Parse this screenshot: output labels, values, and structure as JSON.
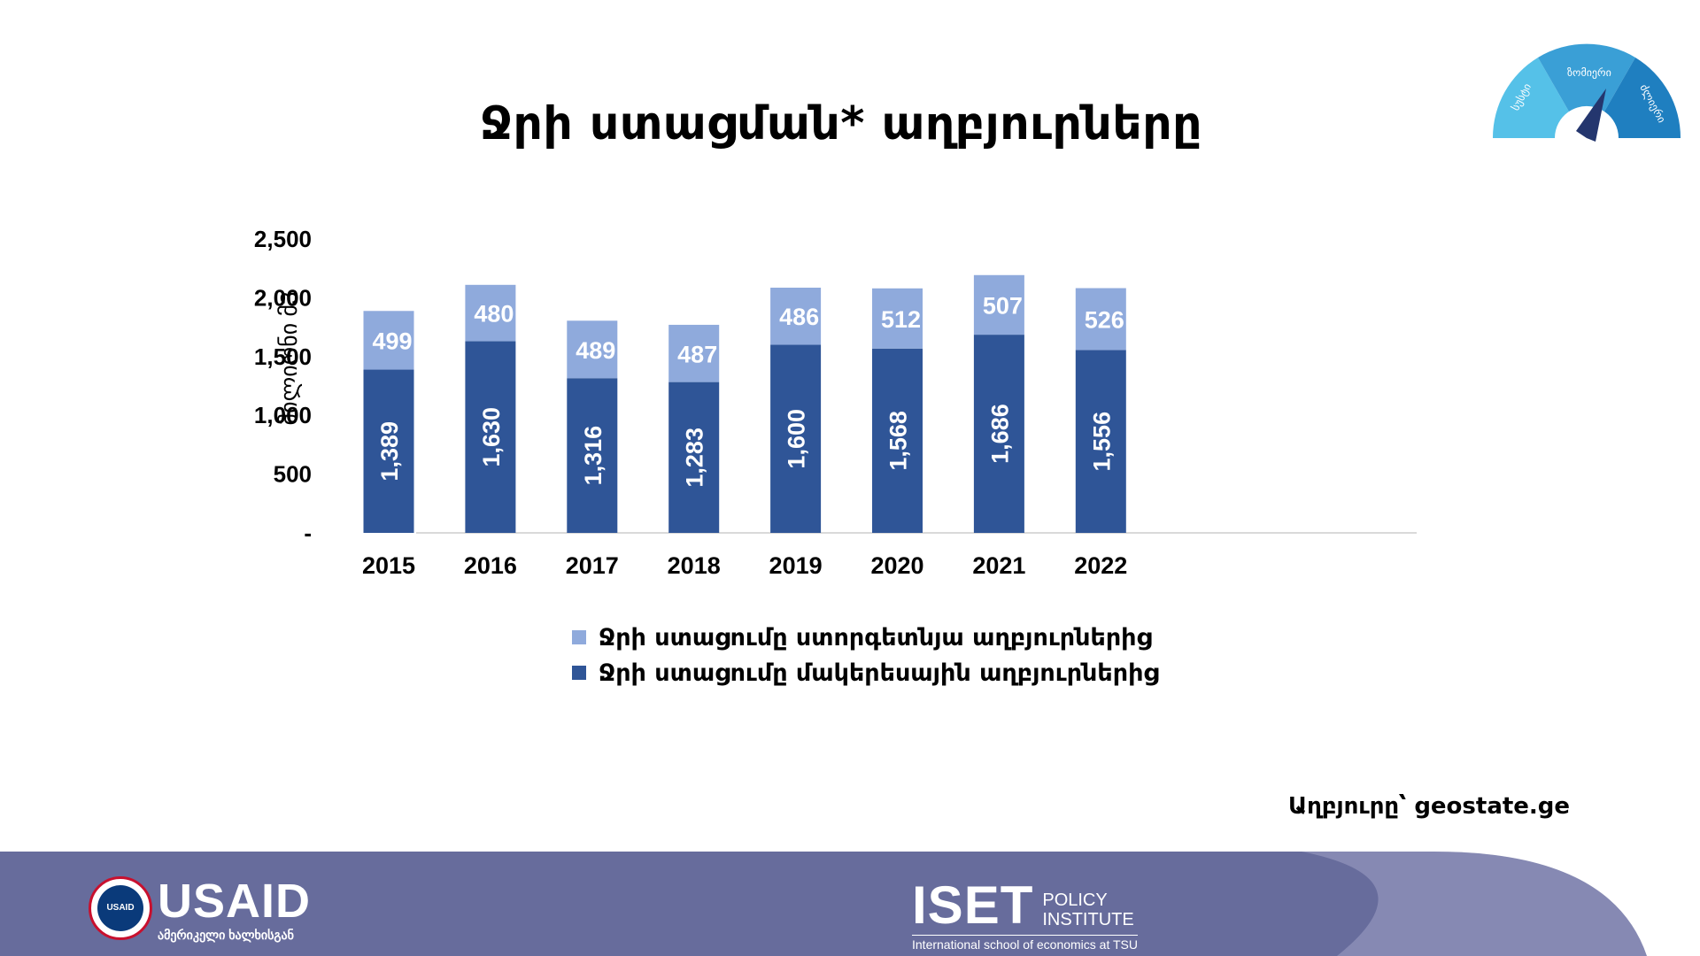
{
  "title": "Ջրի ստացման* աղբյուրները",
  "gauge": {
    "labels": [
      "სუსტი",
      "ზომიერი",
      "ძლიერი"
    ]
  },
  "chart_data": {
    "type": "bar",
    "stacked": true,
    "categories": [
      "2015",
      "2016",
      "2017",
      "2018",
      "2019",
      "2020",
      "2021",
      "2022"
    ],
    "series": [
      {
        "name": "Ջրի ստացումը մակերեսային աղբյուրներից",
        "values": [
          1389,
          1630,
          1316,
          1283,
          1600,
          1568,
          1686,
          1556
        ],
        "color": "#2f5597"
      },
      {
        "name": "Ջրի ստացումը ստորգետնյա աղբյուրներից",
        "values": [
          499,
          480,
          489,
          487,
          486,
          512,
          507,
          526
        ],
        "color": "#8faadc"
      }
    ],
    "ylabel": "მილიონი მ3",
    "yticks": [
      "-",
      "500",
      "1,000",
      "1,500",
      "2,000",
      "2,500"
    ],
    "ylim": [
      0,
      2500
    ],
    "legend": [
      "Ջրի ստացումը ստորգետնյա աղբյուրներից",
      "Ջրի ստացումը մակերեսային աղբյուրներից"
    ]
  },
  "source": "Աղբյուրը՝ geostate.ge",
  "footer": {
    "usaid": {
      "name": "USAID",
      "subtitle": "ამერიკელი ხალხისგან",
      "seal": "USAID"
    },
    "iset": {
      "name": "ISET",
      "line1": "POLICY",
      "line2": "INSTITUTE",
      "subtitle": "International school of economics at TSU"
    },
    "colors": {
      "band": "#676c9c",
      "accent": "#8a8db6"
    }
  }
}
